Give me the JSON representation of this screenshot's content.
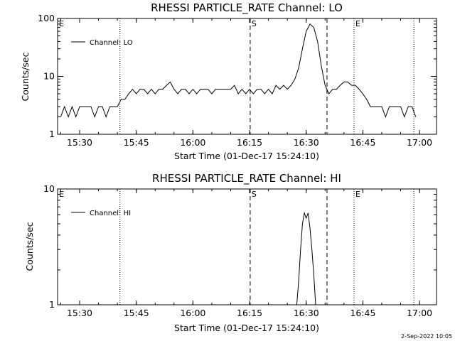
{
  "page": {
    "timestamp": "2-Sep-2022 10:05"
  },
  "chart_data": [
    {
      "type": "line",
      "title": "RHESSI PARTICLE_RATE Channel: LO",
      "xlabel": "Start Time (01-Dec-17 15:24:10)",
      "ylabel": "Counts/sec",
      "yscale": "log",
      "xlim": [
        "15:24:10",
        "17:04:30"
      ],
      "ylim": [
        1,
        100
      ],
      "xticks": [
        "15:30",
        "15:45",
        "16:00",
        "16:15",
        "16:30",
        "16:45",
        "17:00"
      ],
      "yticks": [
        "1",
        "10",
        "100"
      ],
      "legend": {
        "position": "top-left",
        "label": "Channel: LO"
      },
      "markers": [
        {
          "label": "E",
          "time": "15:24:10",
          "style": "dotted"
        },
        {
          "label": "S",
          "time": "16:15:10",
          "style": "dashed"
        },
        {
          "label": "E",
          "time": "16:42:40",
          "style": "dotted"
        },
        {
          "label": "",
          "time": "15:40:40",
          "style": "dotted"
        },
        {
          "label": "",
          "time": "16:35:30",
          "style": "dashed"
        },
        {
          "label": "",
          "time": "16:58:30",
          "style": "dotted"
        }
      ],
      "series": [
        {
          "name": "Channel: LO",
          "x": [
            "15:25",
            "15:26",
            "15:27",
            "15:28",
            "15:29",
            "15:30",
            "15:31",
            "15:32",
            "15:33",
            "15:34",
            "15:35",
            "15:36",
            "15:37",
            "15:38",
            "15:39",
            "15:40",
            "15:41",
            "15:42",
            "15:43",
            "15:44",
            "15:45",
            "15:46",
            "15:47",
            "15:48",
            "15:49",
            "15:50",
            "15:51",
            "15:52",
            "15:53",
            "15:54",
            "15:55",
            "15:56",
            "15:57",
            "15:58",
            "15:59",
            "16:00",
            "16:01",
            "16:02",
            "16:03",
            "16:04",
            "16:05",
            "16:06",
            "16:07",
            "16:08",
            "16:09",
            "16:10",
            "16:11",
            "16:12",
            "16:13",
            "16:14",
            "16:15",
            "16:16",
            "16:17",
            "16:18",
            "16:19",
            "16:20",
            "16:21",
            "16:22",
            "16:23",
            "16:24",
            "16:25",
            "16:26",
            "16:27",
            "16:28",
            "16:29",
            "16:30",
            "16:31",
            "16:32",
            "16:33",
            "16:34",
            "16:35",
            "16:36",
            "16:37",
            "16:38",
            "16:39",
            "16:40",
            "16:41",
            "16:42",
            "16:43",
            "16:44",
            "16:45",
            "16:46",
            "16:47",
            "16:48",
            "16:49",
            "16:50",
            "16:51",
            "16:52",
            "16:53",
            "16:54",
            "16:55",
            "16:56",
            "16:57",
            "16:58",
            "16:59"
          ],
          "values": [
            2,
            3,
            2,
            3,
            2,
            3,
            3,
            3,
            3,
            2,
            3,
            3,
            2,
            3,
            3,
            3,
            4,
            4,
            5,
            6,
            5,
            6,
            6,
            5,
            6,
            5,
            6,
            6,
            7,
            8,
            6,
            5,
            6,
            6,
            5,
            6,
            5,
            6,
            6,
            6,
            5,
            6,
            6,
            6,
            6,
            6,
            7,
            5,
            6,
            5,
            6,
            5,
            6,
            6,
            5,
            6,
            5,
            7,
            6,
            7,
            6,
            7,
            9,
            14,
            30,
            60,
            80,
            70,
            40,
            15,
            7,
            5,
            6,
            6,
            7,
            8,
            8,
            7,
            7,
            6,
            5,
            4,
            3,
            3,
            3,
            3,
            2,
            3,
            3,
            3,
            3,
            2,
            3,
            3,
            2
          ]
        }
      ]
    },
    {
      "type": "line",
      "title": "RHESSI PARTICLE_RATE Channel: HI",
      "xlabel": "Start Time (01-Dec-17 15:24:10)",
      "ylabel": "Counts/sec",
      "yscale": "log",
      "xlim": [
        "15:24:10",
        "17:04:30"
      ],
      "ylim": [
        1,
        10
      ],
      "xticks": [
        "15:30",
        "15:45",
        "16:00",
        "16:15",
        "16:30",
        "16:45",
        "17:00"
      ],
      "yticks": [
        "1",
        "10"
      ],
      "legend": {
        "position": "top-left",
        "label": "Channel: HI"
      },
      "markers": [
        {
          "label": "E",
          "time": "15:24:10",
          "style": "dotted"
        },
        {
          "label": "S",
          "time": "16:15:10",
          "style": "dashed"
        },
        {
          "label": "E",
          "time": "16:42:40",
          "style": "dotted"
        },
        {
          "label": "",
          "time": "15:40:40",
          "style": "dotted"
        },
        {
          "label": "",
          "time": "16:35:30",
          "style": "dashed"
        },
        {
          "label": "",
          "time": "16:58:30",
          "style": "dotted"
        }
      ],
      "series": [
        {
          "name": "Channel: HI",
          "x": [
            "16:27:30",
            "16:28",
            "16:28:30",
            "16:29",
            "16:29:30",
            "16:30",
            "16:30:30",
            "16:31",
            "16:31:30",
            "16:32",
            "16:32:30"
          ],
          "values": [
            1,
            1.6,
            3,
            5,
            6.2,
            5.6,
            6.2,
            4.6,
            3,
            1.8,
            1
          ]
        }
      ]
    }
  ]
}
